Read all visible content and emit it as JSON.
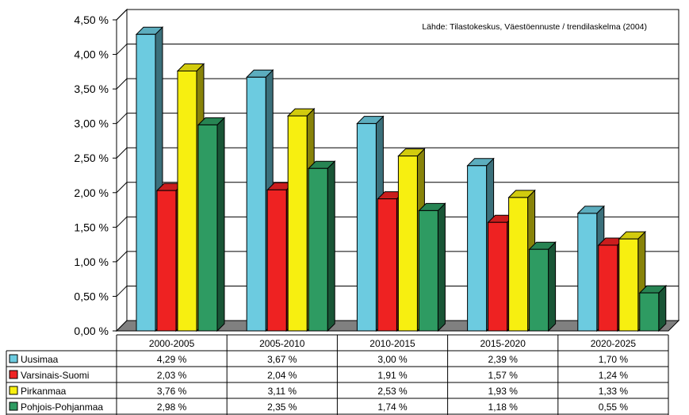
{
  "chart_data": {
    "type": "bar",
    "source_note": "Lähde: Tilastokeskus, Väestöennuste / trendilaskelma (2004)",
    "categories": [
      "2000-2005",
      "2005-2010",
      "2010-2015",
      "2015-2020",
      "2020-2025"
    ],
    "ylim": [
      0,
      4.5
    ],
    "yticks": [
      {
        "value": 0,
        "label": "0,00 %"
      },
      {
        "value": 0.5,
        "label": "0,50 %"
      },
      {
        "value": 1.0,
        "label": "1,00 %"
      },
      {
        "value": 1.5,
        "label": "1,50 %"
      },
      {
        "value": 2.0,
        "label": "2,00 %"
      },
      {
        "value": 2.5,
        "label": "2,50 %"
      },
      {
        "value": 3.0,
        "label": "3,00 %"
      },
      {
        "value": 3.5,
        "label": "3,50 %"
      },
      {
        "value": 4.0,
        "label": "4,00 %"
      },
      {
        "value": 4.5,
        "label": "4,50 %"
      }
    ],
    "grid": true,
    "legend": "data-table-below",
    "series": [
      {
        "name": "Uusimaa",
        "color": "#6ccbe0",
        "values": [
          4.29,
          3.67,
          3.0,
          2.39,
          1.7
        ],
        "labels": [
          "4,29 %",
          "3,67 %",
          "3,00 %",
          "2,39 %",
          "1,70 %"
        ]
      },
      {
        "name": "Varsinais-Suomi",
        "color": "#ee2222",
        "values": [
          2.03,
          2.04,
          1.91,
          1.57,
          1.24
        ],
        "labels": [
          "2,03 %",
          "2,04 %",
          "1,91 %",
          "1,57 %",
          "1,24 %"
        ]
      },
      {
        "name": "Pirkanmaa",
        "color": "#f7ef10",
        "values": [
          3.76,
          3.11,
          2.53,
          1.93,
          1.33
        ],
        "labels": [
          "3,76 %",
          "3,11 %",
          "2,53 %",
          "1,93 %",
          "1,33 %"
        ]
      },
      {
        "name": "Pohjois-Pohjanmaa",
        "color": "#2e9b62",
        "values": [
          2.98,
          2.35,
          1.74,
          1.18,
          0.55
        ],
        "labels": [
          "2,98 %",
          "2,35 %",
          "1,74 %",
          "1,18 %",
          "0,55 %"
        ]
      }
    ]
  }
}
